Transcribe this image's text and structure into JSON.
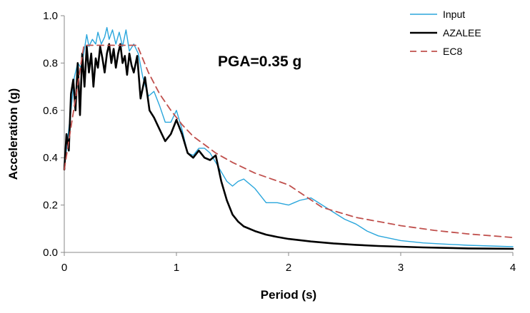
{
  "chart_data": {
    "type": "line",
    "xlabel": "Period (s)",
    "ylabel": "Acceleration (g)",
    "xlim": [
      0,
      4
    ],
    "ylim": [
      0,
      1.0
    ],
    "x_ticks": [
      0,
      1,
      2,
      3,
      4
    ],
    "x_tick_labels": [
      "0",
      "1",
      "2",
      "3",
      "4"
    ],
    "y_ticks": [
      0.0,
      0.2,
      0.4,
      0.6,
      0.8,
      1.0
    ],
    "y_tick_labels": [
      "0.0",
      "0.2",
      "0.4",
      "0.6",
      "0.8",
      "1.0"
    ],
    "grid": false,
    "legend_position": "top-right",
    "annotation": "PGA=0.35 g",
    "series": [
      {
        "name": "Input",
        "color": "#2aa6dc",
        "style": "solid",
        "x": [
          0,
          0.03,
          0.06,
          0.09,
          0.12,
          0.15,
          0.18,
          0.2,
          0.22,
          0.25,
          0.28,
          0.3,
          0.33,
          0.36,
          0.38,
          0.4,
          0.43,
          0.46,
          0.49,
          0.52,
          0.55,
          0.58,
          0.62,
          0.66,
          0.7,
          0.75,
          0.8,
          0.85,
          0.9,
          0.95,
          1.0,
          1.05,
          1.1,
          1.15,
          1.2,
          1.25,
          1.3,
          1.35,
          1.4,
          1.45,
          1.5,
          1.55,
          1.6,
          1.7,
          1.8,
          1.9,
          2.0,
          2.05,
          2.1,
          2.2,
          2.3,
          2.4,
          2.5,
          2.6,
          2.7,
          2.8,
          3.0,
          3.2,
          3.4,
          3.6,
          3.8,
          4.0
        ],
        "y": [
          0.35,
          0.48,
          0.6,
          0.74,
          0.8,
          0.78,
          0.86,
          0.92,
          0.87,
          0.9,
          0.88,
          0.93,
          0.88,
          0.91,
          0.95,
          0.9,
          0.94,
          0.88,
          0.93,
          0.87,
          0.94,
          0.85,
          0.88,
          0.84,
          0.74,
          0.66,
          0.68,
          0.62,
          0.55,
          0.55,
          0.6,
          0.52,
          0.42,
          0.41,
          0.44,
          0.44,
          0.42,
          0.38,
          0.34,
          0.3,
          0.28,
          0.3,
          0.31,
          0.27,
          0.21,
          0.21,
          0.2,
          0.21,
          0.22,
          0.23,
          0.2,
          0.17,
          0.14,
          0.12,
          0.09,
          0.07,
          0.05,
          0.04,
          0.035,
          0.03,
          0.027,
          0.024
        ]
      },
      {
        "name": "AZALEE",
        "color": "#000000",
        "style": "solid",
        "x": [
          0,
          0.02,
          0.04,
          0.06,
          0.08,
          0.1,
          0.12,
          0.14,
          0.16,
          0.18,
          0.2,
          0.22,
          0.24,
          0.26,
          0.28,
          0.3,
          0.32,
          0.34,
          0.36,
          0.38,
          0.4,
          0.42,
          0.44,
          0.46,
          0.48,
          0.5,
          0.52,
          0.54,
          0.56,
          0.58,
          0.6,
          0.62,
          0.65,
          0.68,
          0.72,
          0.76,
          0.8,
          0.85,
          0.9,
          0.95,
          1.0,
          1.05,
          1.1,
          1.15,
          1.2,
          1.25,
          1.3,
          1.35,
          1.4,
          1.45,
          1.5,
          1.55,
          1.6,
          1.7,
          1.8,
          1.9,
          2.0,
          2.2,
          2.4,
          2.6,
          2.8,
          3.0,
          3.2,
          3.4,
          3.6,
          3.8,
          4.0
        ],
        "y": [
          0.35,
          0.5,
          0.43,
          0.67,
          0.73,
          0.6,
          0.8,
          0.58,
          0.84,
          0.7,
          0.87,
          0.76,
          0.84,
          0.7,
          0.82,
          0.78,
          0.87,
          0.82,
          0.76,
          0.84,
          0.88,
          0.8,
          0.86,
          0.78,
          0.84,
          0.88,
          0.8,
          0.83,
          0.75,
          0.84,
          0.79,
          0.76,
          0.83,
          0.65,
          0.74,
          0.6,
          0.57,
          0.52,
          0.47,
          0.5,
          0.56,
          0.5,
          0.42,
          0.4,
          0.43,
          0.4,
          0.39,
          0.41,
          0.3,
          0.22,
          0.16,
          0.13,
          0.11,
          0.09,
          0.075,
          0.065,
          0.057,
          0.046,
          0.038,
          0.032,
          0.027,
          0.024,
          0.021,
          0.019,
          0.017,
          0.016,
          0.015
        ]
      },
      {
        "name": "EC8",
        "color": "#c0504d",
        "style": "dashed",
        "x": [
          0,
          0.175,
          0.65,
          0.75,
          0.85,
          0.95,
          1.05,
          1.15,
          1.25,
          1.35,
          1.5,
          1.7,
          2.0,
          2.3,
          2.6,
          3.0,
          3.3,
          3.6,
          4.0
        ],
        "y": [
          0.35,
          0.875,
          0.875,
          0.76,
          0.67,
          0.6,
          0.54,
          0.49,
          0.455,
          0.42,
          0.38,
          0.335,
          0.285,
          0.19,
          0.148,
          0.113,
          0.093,
          0.078,
          0.063
        ]
      }
    ]
  }
}
